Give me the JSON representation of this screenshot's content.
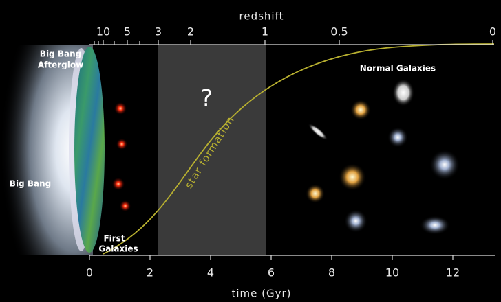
{
  "axes": {
    "top": {
      "title": "redshift",
      "ticks": [
        10,
        5,
        3,
        2,
        1,
        0.5,
        0
      ]
    },
    "bottom": {
      "title": "time (Gyr)",
      "ticks": [
        0,
        2,
        4,
        6,
        8,
        10,
        12
      ]
    }
  },
  "labels": {
    "afterglow": [
      "Big Bang",
      "Afterglow"
    ],
    "big_bang": "Big Bang",
    "first_galaxies": [
      "First",
      "Galaxies"
    ],
    "normal_galaxies": "Normal Galaxies",
    "unknown": "?",
    "star_formation": "star formation"
  }
}
